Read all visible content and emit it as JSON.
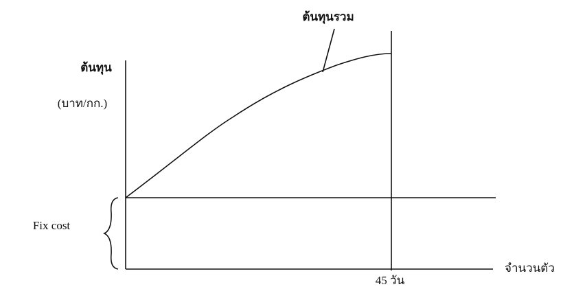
{
  "diagram": {
    "curve_label": "ต้นทุนรวม",
    "y_axis_label": "ต้นทุน",
    "y_axis_unit": "(บาท/กก.)",
    "fixed_cost_label": "Fix cost",
    "x_axis_label": "จำนวนตัว",
    "marker_label": "45 วัน"
  }
}
